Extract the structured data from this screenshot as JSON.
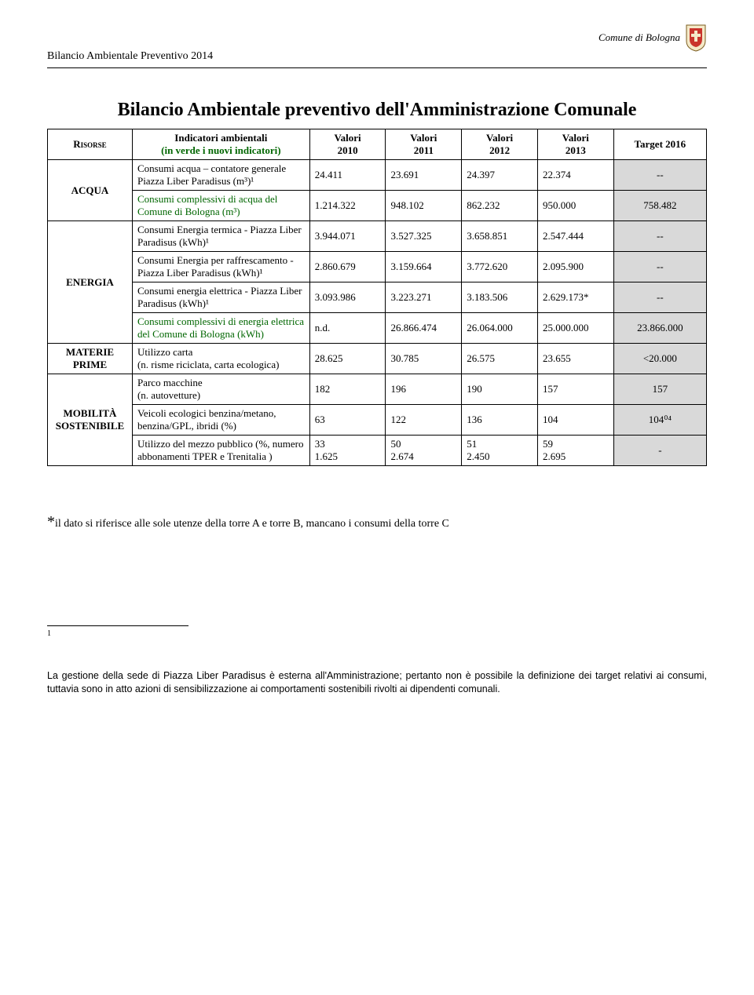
{
  "header": {
    "right_text": "Comune di Bologna",
    "left_text": "Bilancio Ambientale Preventivo 2014"
  },
  "title": "Bilancio Ambientale preventivo dell'Amministrazione Comunale",
  "table": {
    "header": {
      "risorse": "Risorse",
      "indicatori": "Indicatori ambientali",
      "indicatori_sub": "(in verde i nuovi indicatori)",
      "c2010": "Valori\n2010",
      "c2011": "Valori\n2011",
      "c2012": "Valori\n2012",
      "c2013": "Valori\n2013",
      "target": "Target 2016"
    },
    "groups": [
      {
        "label": "ACQUA",
        "rows": [
          {
            "indicator": "Consumi acqua – contatore generale Piazza Liber Paradisus (m³)¹",
            "green": false,
            "v2010": "24.411",
            "v2011": "23.691",
            "v2012": "24.397",
            "v2013": "22.374",
            "target": "--"
          },
          {
            "indicator": "Consumi complessivi di acqua del Comune di Bologna (m³)",
            "green": true,
            "v2010": "1.214.322",
            "v2011": "948.102",
            "v2012": "862.232",
            "v2013": "950.000",
            "target": "758.482"
          }
        ]
      },
      {
        "label": "ENERGIA",
        "rows": [
          {
            "indicator": "Consumi Energia termica - Piazza Liber Paradisus (kWh)¹",
            "green": false,
            "v2010": "3.944.071",
            "v2011": "3.527.325",
            "v2012": "3.658.851",
            "v2013": "2.547.444",
            "target": "--"
          },
          {
            "indicator": "Consumi Energia per raffrescamento - Piazza Liber Paradisus (kWh)¹",
            "green": false,
            "v2010": "2.860.679",
            "v2011": "3.159.664",
            "v2012": "3.772.620",
            "v2013": "2.095.900",
            "target": "--"
          },
          {
            "indicator": "Consumi energia elettrica - Piazza Liber Paradisus (kWh)¹",
            "green": false,
            "v2010": "3.093.986",
            "v2011": "3.223.271",
            "v2012": "3.183.506",
            "v2013": "2.629.173*",
            "target": "--"
          },
          {
            "indicator": "Consumi complessivi di energia elettrica del Comune di Bologna (kWh)",
            "green": true,
            "v2010": "n.d.",
            "v2011": "26.866.474",
            "v2012": "26.064.000",
            "v2013": "25.000.000",
            "target": "23.866.000"
          }
        ]
      },
      {
        "label": "MATERIE PRIME",
        "rows": [
          {
            "indicator": "Utilizzo carta\n(n. risme riciclata, carta ecologica)",
            "green": false,
            "v2010": "28.625",
            "v2011": "30.785",
            "v2012": "26.575",
            "v2013": "23.655",
            "target": "<20.000"
          }
        ]
      },
      {
        "label": "MOBILITÀ SOSTENIBILE",
        "rows": [
          {
            "indicator": "Parco macchine\n(n. autovetture)",
            "green": false,
            "v2010": "182",
            "v2011": "196",
            "v2012": "190",
            "v2013": "157",
            "target": "157"
          },
          {
            "indicator": "Veicoli ecologici benzina/metano, benzina/GPL, ibridi (%)",
            "green": false,
            "v2010": "63",
            "v2011": "122",
            "v2012": "136",
            "v2013": "104",
            "target": "104⁰⁴"
          },
          {
            "indicator": "Utilizzo del mezzo pubblico (%, numero abbonamenti TPER e Trenitalia )",
            "green": false,
            "v2010": "33\n1.625",
            "v2011": "50\n2.674",
            "v2012": "51\n2.450",
            "v2013": "59\n2.695",
            "target": "-"
          }
        ]
      }
    ]
  },
  "footnote_star": "il dato si riferisce alle sole utenze della torre A e torre B, mancano i consumi della torre C",
  "footnote_1": "1",
  "bottom_note": "La gestione della sede di Piazza Liber Paradisus è esterna all'Amministrazione; pertanto non è possibile la definizione dei target relativi ai consumi, tuttavia sono in atto azioni di sensibilizzazione ai comportamenti sostenibili rivolti ai  dipendenti comunali.",
  "colors": {
    "target_bg": "#d9d9d9",
    "green_text": "#006600",
    "border": "#000000"
  }
}
